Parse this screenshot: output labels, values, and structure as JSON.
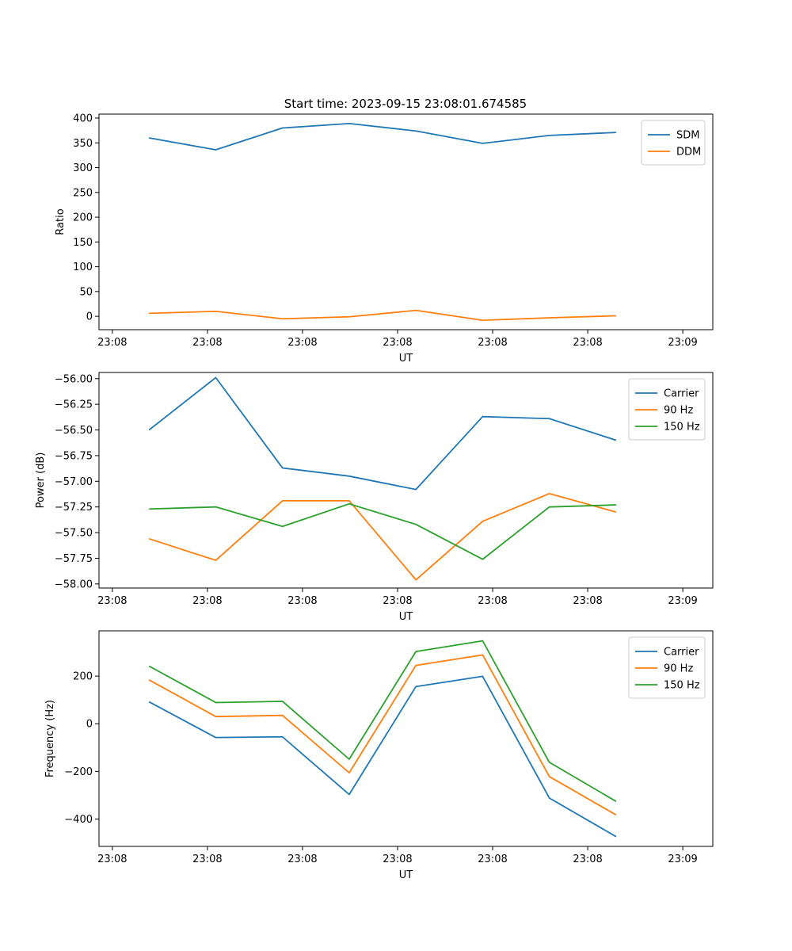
{
  "figure": {
    "title": "Start time: 2023-09-15 23:08:01.674585"
  },
  "chart_data": [
    {
      "type": "line",
      "title": "Start time: 2023-09-15 23:08:01.674585",
      "xlabel": "UT",
      "ylabel": "Ratio",
      "x_tick_labels": [
        "23:08",
        "23:08",
        "23:08",
        "23:08",
        "23:08",
        "23:08",
        "23:09"
      ],
      "x_index": [
        0,
        1,
        2,
        3,
        4,
        5,
        6,
        7
      ],
      "xlim": [
        -0.75,
        8.45
      ],
      "ylim": [
        -27,
        408
      ],
      "y_ticks": [
        0,
        50,
        100,
        150,
        200,
        250,
        300,
        350,
        400
      ],
      "y_tick_labels": [
        "0",
        "50",
        "100",
        "150",
        "200",
        "250",
        "300",
        "350",
        "400"
      ],
      "legend": "top-right",
      "series": [
        {
          "name": "SDM",
          "color": "#1f77b4",
          "values": [
            360,
            336,
            380,
            389,
            374,
            349,
            365,
            371
          ]
        },
        {
          "name": "DDM",
          "color": "#ff7f0e",
          "values": [
            6,
            10,
            -5,
            -1,
            12,
            -8,
            -3,
            1
          ]
        }
      ]
    },
    {
      "type": "line",
      "title": "",
      "xlabel": "UT",
      "ylabel": "Power (dB)",
      "x_tick_labels": [
        "23:08",
        "23:08",
        "23:08",
        "23:08",
        "23:08",
        "23:08",
        "23:09"
      ],
      "x_index": [
        0,
        1,
        2,
        3,
        4,
        5,
        6,
        7
      ],
      "xlim": [
        -0.75,
        8.45
      ],
      "ylim": [
        -58.04,
        -55.94
      ],
      "y_ticks": [
        -58.0,
        -57.75,
        -57.5,
        -57.25,
        -57.0,
        -56.75,
        -56.5,
        -56.25,
        -56.0
      ],
      "y_tick_labels": [
        "−58.00",
        "−57.75",
        "−57.50",
        "−57.25",
        "−57.00",
        "−56.75",
        "−56.50",
        "−56.25",
        "−56.00"
      ],
      "legend": "top-right",
      "series": [
        {
          "name": "Carrier",
          "color": "#1f77b4",
          "values": [
            -56.5,
            -55.99,
            -56.87,
            -56.95,
            -57.08,
            -56.37,
            -56.39,
            -56.6
          ]
        },
        {
          "name": "90 Hz",
          "color": "#ff7f0e",
          "values": [
            -57.56,
            -57.77,
            -57.19,
            -57.19,
            -57.96,
            -57.39,
            -57.12,
            -57.3
          ]
        },
        {
          "name": "150 Hz",
          "color": "#2ca02c",
          "values": [
            -57.27,
            -57.25,
            -57.44,
            -57.22,
            -57.42,
            -57.76,
            -57.25,
            -57.23
          ]
        }
      ]
    },
    {
      "type": "line",
      "title": "",
      "xlabel": "UT",
      "ylabel": "Frequency (Hz)",
      "x_tick_labels": [
        "23:08",
        "23:08",
        "23:08",
        "23:08",
        "23:08",
        "23:08",
        "23:09"
      ],
      "x_index": [
        0,
        1,
        2,
        3,
        4,
        5,
        6,
        7
      ],
      "xlim": [
        -0.75,
        8.45
      ],
      "ylim": [
        -515,
        390
      ],
      "y_ticks": [
        -400,
        -200,
        0,
        200
      ],
      "y_tick_labels": [
        "−400",
        "−200",
        "0",
        "200"
      ],
      "legend": "top-right",
      "series": [
        {
          "name": "Carrier",
          "color": "#1f77b4",
          "values": [
            92,
            -58,
            -55,
            -297,
            156,
            199,
            -312,
            -474
          ]
        },
        {
          "name": "90 Hz",
          "color": "#ff7f0e",
          "values": [
            184,
            30,
            35,
            -206,
            245,
            289,
            -222,
            -383
          ]
        },
        {
          "name": "150 Hz",
          "color": "#2ca02c",
          "values": [
            242,
            89,
            94,
            -149,
            303,
            348,
            -162,
            -326
          ]
        }
      ]
    }
  ]
}
